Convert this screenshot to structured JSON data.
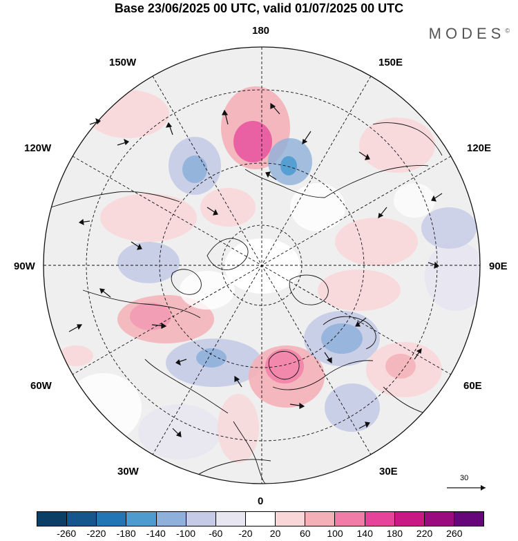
{
  "header": {
    "title": "Base 23/06/2025 00 UTC, valid 01/07/2025 00 UTC",
    "brand": "MODES",
    "brand_mark": "©"
  },
  "map": {
    "labels": {
      "top": "180",
      "bottom": "0",
      "left": "90W",
      "right": "90E",
      "upper_left_1": "150W",
      "upper_left_2": "120W",
      "upper_right_1": "150E",
      "upper_right_2": "120E",
      "lower_left_1": "60W",
      "lower_left_2": "30W",
      "lower_right_1": "60E",
      "lower_right_2": "30E"
    },
    "reference_vector": {
      "label": "30"
    }
  },
  "legend": {
    "colors": [
      "#0c3f66",
      "#15578d",
      "#2276b3",
      "#4e9bd0",
      "#8fb0da",
      "#c5cbe7",
      "#e7e6f1",
      "#ffffff",
      "#f9d7d9",
      "#f3b0b7",
      "#f17ca8",
      "#e6439b",
      "#c91984",
      "#9a0b80",
      "#67057a"
    ],
    "ticks": [
      "-260",
      "-220",
      "-180",
      "-140",
      "-100",
      "-60",
      "-20",
      "20",
      "60",
      "100",
      "140",
      "180",
      "220",
      "260"
    ]
  }
}
